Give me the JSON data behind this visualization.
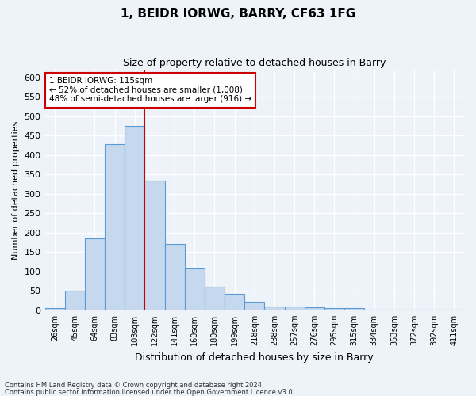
{
  "title1": "1, BEIDR IORWG, BARRY, CF63 1FG",
  "title2": "Size of property relative to detached houses in Barry",
  "xlabel": "Distribution of detached houses by size in Barry",
  "ylabel": "Number of detached properties",
  "categories": [
    "26sqm",
    "45sqm",
    "64sqm",
    "83sqm",
    "103sqm",
    "122sqm",
    "141sqm",
    "160sqm",
    "180sqm",
    "199sqm",
    "218sqm",
    "238sqm",
    "257sqm",
    "276sqm",
    "295sqm",
    "315sqm",
    "334sqm",
    "353sqm",
    "372sqm",
    "392sqm",
    "411sqm"
  ],
  "values": [
    5,
    50,
    185,
    428,
    475,
    335,
    172,
    107,
    60,
    43,
    22,
    10,
    10,
    7,
    5,
    5,
    2,
    2,
    1,
    2,
    2
  ],
  "bar_color": "#c5d8ed",
  "bar_edge_color": "#5b9bd5",
  "annotation_text": "1 BEIDR IORWG: 115sqm\n← 52% of detached houses are smaller (1,008)\n48% of semi-detached houses are larger (916) →",
  "annotation_box_color": "#ffffff",
  "annotation_box_edge": "#cc0000",
  "ylim": [
    0,
    620
  ],
  "yticks": [
    0,
    50,
    100,
    150,
    200,
    250,
    300,
    350,
    400,
    450,
    500,
    550,
    600
  ],
  "footer1": "Contains HM Land Registry data © Crown copyright and database right 2024.",
  "footer2": "Contains public sector information licensed under the Open Government Licence v3.0.",
  "bg_color": "#eef2f9",
  "grid_color": "#ffffff",
  "redline_bin": 4.5
}
